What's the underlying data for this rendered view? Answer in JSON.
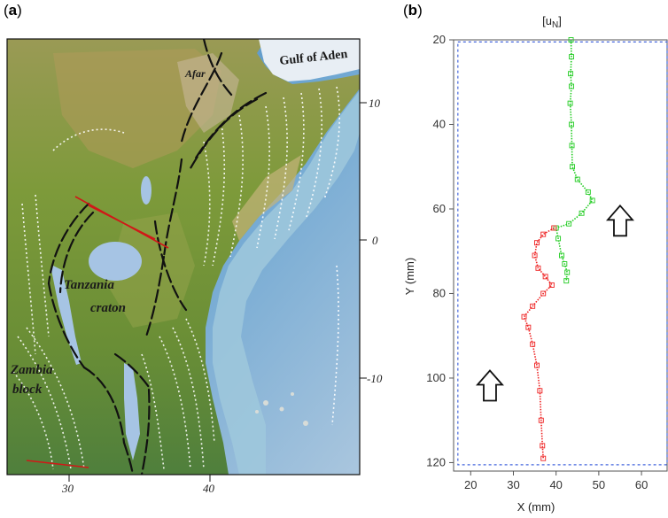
{
  "panel_a": {
    "label_open": "(",
    "label_letter": "a",
    "label_close": ")",
    "place_labels": {
      "gulf": "Gulf of Aden",
      "afar": "Afar",
      "tanzania": "Tanzania",
      "craton": "craton",
      "zambia": "Zambia",
      "block": "block"
    },
    "lat_ticks": [
      "10",
      "0",
      "-10"
    ],
    "lon_ticks": [
      "30",
      "40"
    ]
  },
  "panel_b": {
    "label_open": "(",
    "label_letter": "b",
    "label_close": ")"
  },
  "chart_data": {
    "type": "scatter",
    "title": "[uN]",
    "xlabel": "X (mm)",
    "ylabel": "Y (mm)",
    "xlim": [
      16,
      66
    ],
    "ylim": [
      20,
      122
    ],
    "y_inverted": true,
    "xticks": [
      20,
      30,
      40,
      50,
      60
    ],
    "yticks": [
      20,
      40,
      60,
      80,
      100,
      120
    ],
    "domain_box": {
      "x": [
        17,
        66
      ],
      "y": [
        20.5,
        120.5
      ]
    },
    "arrows": [
      {
        "x": 55,
        "y": 63,
        "direction": "up"
      },
      {
        "x": 24.5,
        "y": 102,
        "direction": "up"
      }
    ],
    "series": [
      {
        "color": "#22cc22",
        "values": [
          [
            43.5,
            20
          ],
          [
            43.6,
            24
          ],
          [
            43.4,
            28
          ],
          [
            43.6,
            31
          ],
          [
            43.3,
            35
          ],
          [
            43.6,
            40
          ],
          [
            43.7,
            45
          ],
          [
            43.8,
            50
          ],
          [
            45,
            53
          ],
          [
            47.5,
            56
          ],
          [
            48.5,
            58
          ],
          [
            46,
            61
          ],
          [
            43,
            63.5
          ],
          [
            40,
            64.5
          ],
          [
            40.5,
            67
          ],
          [
            41.3,
            71
          ],
          [
            42,
            73
          ],
          [
            42.6,
            75
          ],
          [
            42.4,
            77
          ]
        ]
      },
      {
        "color": "#ee2222",
        "values": [
          [
            39.5,
            64.5
          ],
          [
            37,
            66
          ],
          [
            35.5,
            68
          ],
          [
            35,
            71
          ],
          [
            35.8,
            74
          ],
          [
            37.5,
            76
          ],
          [
            39,
            78
          ],
          [
            37,
            80
          ],
          [
            34.5,
            83
          ],
          [
            32.5,
            85.5
          ],
          [
            33.5,
            88
          ],
          [
            34.5,
            92
          ],
          [
            35.5,
            97
          ],
          [
            36.2,
            103
          ],
          [
            36.5,
            110
          ],
          [
            36.8,
            116
          ],
          [
            37,
            119
          ]
        ]
      }
    ]
  }
}
